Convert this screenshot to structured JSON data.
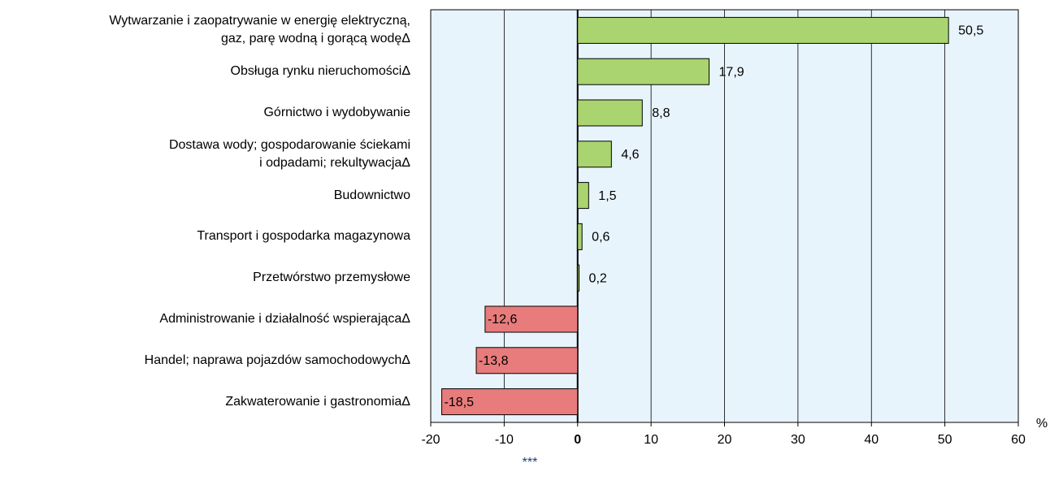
{
  "chart_data": {
    "type": "hbar",
    "categories": [
      "Wytwarzanie i zaopatrywanie w energię elektryczną,\ngaz, parę wodną i gorącą wodęΔ",
      "Obsługa rynku nieruchomościΔ",
      "Górnictwo i wydobywanie",
      "Dostawa wody; gospodarowanie ściekami\ni odpadami; rekultywacjaΔ",
      "Budownictwo",
      "Transport i gospodarka magazynowa",
      "Przetwórstwo przemysłowe",
      "Administrowanie i działalność wspierającaΔ",
      "Handel; naprawa pojazdów samochodowychΔ",
      "Zakwaterowanie i gastronomiaΔ"
    ],
    "values": [
      50.5,
      17.9,
      8.8,
      4.6,
      1.5,
      0.6,
      0.2,
      -12.6,
      -13.8,
      -18.5
    ],
    "value_labels": [
      "50,5",
      "17,9",
      "8,8",
      "4,6",
      "1,5",
      "0,6",
      "0,2",
      "-12,6",
      "-13,8",
      "-18,5"
    ],
    "positive_color": "#a9d46f",
    "negative_color": "#e87b7b",
    "xlim": [
      -20,
      60
    ],
    "xticks": [
      -20,
      -10,
      0,
      10,
      20,
      30,
      40,
      50,
      60
    ],
    "x_label": "%",
    "grid": true,
    "footer": "***"
  }
}
